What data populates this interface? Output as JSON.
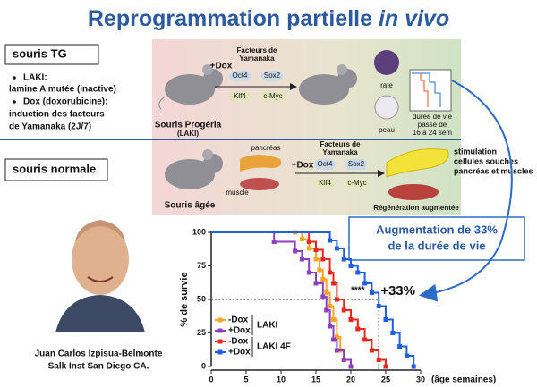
{
  "header": {
    "title": "Reprogrammation partielle",
    "title_italic": "in vivo"
  },
  "left": {
    "tg_label": "souris TG",
    "bullets": [
      "LAKI:",
      "lamine A mutée (inactive)",
      "Dox (doxorubicine):",
      "induction des facteurs",
      "de Yamanaka (2J/7)"
    ],
    "normal_label": "souris normale"
  },
  "diagram": {
    "top": {
      "dox": "+Dox",
      "factors": [
        "Facteurs de",
        "Yamanaka"
      ],
      "genes": [
        "Oct4",
        "Sox2",
        "Klf4",
        "c-Myc"
      ],
      "mouse_label": [
        "Souris Progéria",
        "(LAKI)"
      ],
      "organs": [
        "rate",
        "peau"
      ],
      "lifespan_note": [
        "durée de vie",
        "passe de",
        "16 à 24 sem"
      ]
    },
    "bottom": {
      "pancreas": "pancréas",
      "muscle": "muscle",
      "dox": "+Dox",
      "factors": [
        "Facteurs de",
        "Yamanaka"
      ],
      "genes": [
        "Oct4",
        "Sox2",
        "Klf4",
        "c-Myc"
      ],
      "mouse_label": "Souris âgée",
      "result": "Régénération augmentée",
      "note": [
        "stimulation",
        "cellules souches",
        "pancréas et muscles"
      ]
    }
  },
  "callout": [
    "Augmentation de 33%",
    "de la durée de vie"
  ],
  "photo_caption": [
    "Juan Carlos Izpisua-Belmonte",
    "Salk Inst San Diego CA."
  ],
  "chart_data": {
    "type": "step",
    "ylabel": "% de survie",
    "xlabel": "(âge semaines)",
    "xlim": [
      0,
      30
    ],
    "ylim": [
      0,
      100
    ],
    "xticks": [
      0,
      5,
      10,
      15,
      20,
      25,
      30
    ],
    "yticks": [
      0,
      25,
      50,
      75,
      100
    ],
    "annotations": [
      "****",
      "+33%"
    ],
    "reference": {
      "y": 50,
      "x": [
        18,
        24
      ]
    },
    "legend_groups": [
      "LAKI",
      "LAKI 4F"
    ],
    "series": [
      {
        "name": "-Dox",
        "group": 0,
        "color": "#f5a623",
        "x": [
          0,
          12,
          13,
          14,
          15,
          15.5,
          16,
          16.5,
          17,
          17.5,
          18,
          18.5,
          19,
          20
        ],
        "values": [
          100,
          100,
          95,
          88,
          80,
          72,
          65,
          55,
          45,
          35,
          22,
          12,
          5,
          0
        ]
      },
      {
        "name": "+Dox",
        "group": 0,
        "color": "#8e3fbf",
        "x": [
          0,
          9,
          12,
          13,
          14,
          15,
          16,
          16.5,
          17,
          17.5,
          18,
          19,
          20
        ],
        "values": [
          100,
          93,
          86,
          80,
          70,
          62,
          52,
          42,
          30,
          20,
          12,
          5,
          0
        ]
      },
      {
        "name": "-Dox",
        "group": 1,
        "color": "#e8281e",
        "x": [
          0,
          14,
          15,
          16,
          17,
          17.5,
          18,
          19,
          20,
          21,
          22,
          23,
          24,
          25
        ],
        "values": [
          100,
          93,
          87,
          80,
          70,
          62,
          50,
          42,
          35,
          28,
          20,
          12,
          5,
          0
        ]
      },
      {
        "name": "+Dox",
        "group": 1,
        "color": "#1f5fe0",
        "x": [
          0,
          17,
          18,
          19,
          20,
          21,
          22,
          23,
          24,
          25,
          26,
          27,
          28,
          29
        ],
        "values": [
          100,
          94,
          88,
          80,
          75,
          70,
          62,
          55,
          45,
          35,
          25,
          15,
          8,
          0
        ]
      }
    ]
  }
}
